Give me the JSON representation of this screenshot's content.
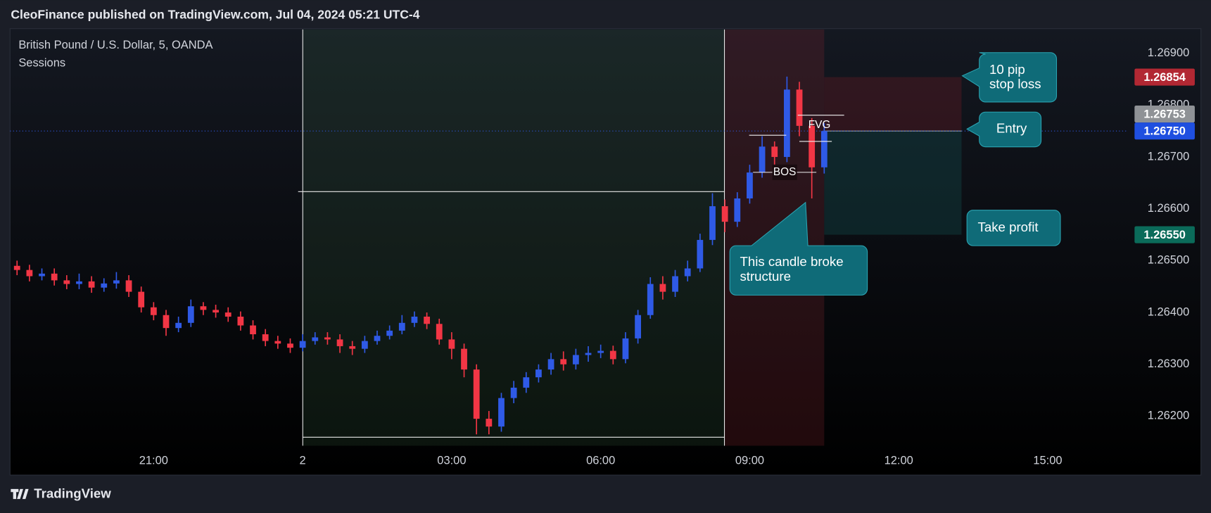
{
  "header": "CleoFinance published on TradingView.com, Jul 04, 2024 05:21 UTC-4",
  "footer": "TradingView",
  "chart_data": {
    "type": "candlestick",
    "title": "British Pound / U.S. Dollar, 5, OANDA",
    "subtitle": "Sessions",
    "up_color": "#2f5ae6",
    "down_color": "#f23645",
    "grid": false,
    "xlim": [
      -5.86,
      16.53
    ],
    "xticks": [
      {
        "value": -3,
        "label": "21:00"
      },
      {
        "value": 0,
        "label": "2"
      },
      {
        "value": 3,
        "label": "03:00"
      },
      {
        "value": 6,
        "label": "06:00"
      },
      {
        "value": 9,
        "label": "09:00"
      },
      {
        "value": 12,
        "label": "12:00"
      },
      {
        "value": 15,
        "label": "15:00"
      }
    ],
    "ylim": [
      1.26143,
      1.26946
    ],
    "yticks": [
      {
        "value": 1.262,
        "label": "1.26200"
      },
      {
        "value": 1.263,
        "label": "1.26300"
      },
      {
        "value": 1.264,
        "label": "1.26400"
      },
      {
        "value": 1.265,
        "label": "1.26500"
      },
      {
        "value": 1.266,
        "label": "1.26600"
      },
      {
        "value": 1.267,
        "label": "1.26700"
      },
      {
        "value": 1.268,
        "label": "1.26800"
      },
      {
        "value": 1.269,
        "label": "1.26900"
      }
    ],
    "x": [
      -5.75,
      -5.5,
      -5.25,
      -5,
      -4.75,
      -4.5,
      -4.25,
      -4,
      -3.75,
      -3.5,
      -3.25,
      -3,
      -2.75,
      -2.5,
      -2.25,
      -2,
      -1.75,
      -1.5,
      -1.25,
      -1,
      -0.75,
      -0.5,
      -0.25,
      0,
      0.25,
      0.5,
      0.75,
      1,
      1.25,
      1.5,
      1.75,
      2,
      2.25,
      2.5,
      2.75,
      3,
      3.25,
      3.5,
      3.75,
      4,
      4.25,
      4.5,
      4.75,
      5,
      5.25,
      5.5,
      5.75,
      6,
      6.25,
      6.5,
      6.75,
      7,
      7.25,
      7.5,
      7.75,
      8,
      8.25,
      8.5,
      8.75,
      9,
      9.25,
      9.5,
      9.75,
      10,
      10.25,
      10.5
    ],
    "open": [
      1.2649,
      1.26482,
      1.2647,
      1.26475,
      1.26462,
      1.26455,
      1.2646,
      1.26448,
      1.26456,
      1.26462,
      1.2644,
      1.2641,
      1.26395,
      1.2637,
      1.2638,
      1.26412,
      1.26405,
      1.264,
      1.26392,
      1.26375,
      1.26358,
      1.26345,
      1.2634,
      1.26332,
      1.26345,
      1.26352,
      1.26348,
      1.26335,
      1.2633,
      1.26345,
      1.26355,
      1.26365,
      1.2638,
      1.26392,
      1.26378,
      1.26348,
      1.2633,
      1.2629,
      1.26195,
      1.2618,
      1.26235,
      1.26255,
      1.26275,
      1.2629,
      1.2631,
      1.263,
      1.26318,
      1.26322,
      1.26326,
      1.2631,
      1.2635,
      1.26395,
      1.26455,
      1.2644,
      1.2647,
      1.26485,
      1.2654,
      1.26605,
      1.26575,
      1.2662,
      1.2667,
      1.2672,
      1.267,
      1.2683,
      1.2676,
      1.2668
    ],
    "high": [
      1.265,
      1.26492,
      1.26485,
      1.26485,
      1.26472,
      1.26475,
      1.2647,
      1.26466,
      1.26478,
      1.26472,
      1.2645,
      1.2642,
      1.26405,
      1.26392,
      1.26425,
      1.2642,
      1.26415,
      1.2641,
      1.26402,
      1.26385,
      1.26368,
      1.26355,
      1.2635,
      1.26358,
      1.26362,
      1.26362,
      1.26358,
      1.26345,
      1.26355,
      1.26365,
      1.26375,
      1.26395,
      1.26402,
      1.264,
      1.26388,
      1.26362,
      1.2634,
      1.263,
      1.2621,
      1.26245,
      1.26268,
      1.26285,
      1.263,
      1.26322,
      1.26325,
      1.2633,
      1.26335,
      1.26338,
      1.26336,
      1.26362,
      1.26405,
      1.26468,
      1.2647,
      1.26482,
      1.265,
      1.26552,
      1.2663,
      1.26618,
      1.26632,
      1.26685,
      1.2674,
      1.2673,
      1.26855,
      1.26845,
      1.26775,
      1.26765
    ],
    "low": [
      1.26472,
      1.2646,
      1.26462,
      1.26452,
      1.26445,
      1.26445,
      1.26438,
      1.2644,
      1.26446,
      1.2643,
      1.264,
      1.26385,
      1.26355,
      1.26362,
      1.26372,
      1.26395,
      1.2639,
      1.26382,
      1.26365,
      1.26348,
      1.26335,
      1.2633,
      1.26322,
      1.26325,
      1.26338,
      1.26338,
      1.26322,
      1.26318,
      1.26322,
      1.26338,
      1.26348,
      1.26358,
      1.26372,
      1.26368,
      1.26338,
      1.2631,
      1.26275,
      1.26165,
      1.26165,
      1.2617,
      1.26225,
      1.26245,
      1.26265,
      1.2628,
      1.26288,
      1.2629,
      1.26305,
      1.26312,
      1.263,
      1.26302,
      1.2634,
      1.26388,
      1.26425,
      1.2643,
      1.2646,
      1.26478,
      1.2653,
      1.26555,
      1.26565,
      1.2661,
      1.2666,
      1.2668,
      1.2669,
      1.2674,
      1.2662,
      1.26668
    ],
    "close": [
      1.26482,
      1.2647,
      1.26475,
      1.26462,
      1.26455,
      1.2646,
      1.26448,
      1.26456,
      1.26462,
      1.2644,
      1.2641,
      1.26395,
      1.2637,
      1.2638,
      1.26412,
      1.26405,
      1.264,
      1.26392,
      1.26375,
      1.26358,
      1.26345,
      1.2634,
      1.26332,
      1.26345,
      1.26352,
      1.26348,
      1.26335,
      1.2633,
      1.26345,
      1.26355,
      1.26365,
      1.2638,
      1.26392,
      1.26378,
      1.26348,
      1.2633,
      1.2629,
      1.26195,
      1.2618,
      1.26235,
      1.26255,
      1.26275,
      1.2629,
      1.2631,
      1.263,
      1.26318,
      1.26322,
      1.26326,
      1.2631,
      1.2635,
      1.26395,
      1.26455,
      1.2644,
      1.2647,
      1.26485,
      1.2654,
      1.26605,
      1.26575,
      1.2662,
      1.2667,
      1.2672,
      1.267,
      1.2683,
      1.2676,
      1.2668,
      1.2675
    ],
    "price_labels": [
      {
        "value": 1.26854,
        "label": "1.26854",
        "color": "#b22833"
      },
      {
        "value": 1.26753,
        "label": "1.26753",
        "color": "#8f9296"
      },
      {
        "value": 1.2675,
        "label": "1.26750",
        "color": "#1f4fe0"
      },
      {
        "value": 1.2655,
        "label": "1.26550",
        "color": "#0b6b5a"
      }
    ],
    "annotations": {
      "stop_loss": [
        "10 pip",
        "stop loss"
      ],
      "entry": [
        "Entry"
      ],
      "take_profit": [
        "Take profit"
      ],
      "broke": [
        "This candle broke",
        "structure"
      ],
      "fvg": "FVG",
      "bos": "BOS"
    }
  }
}
